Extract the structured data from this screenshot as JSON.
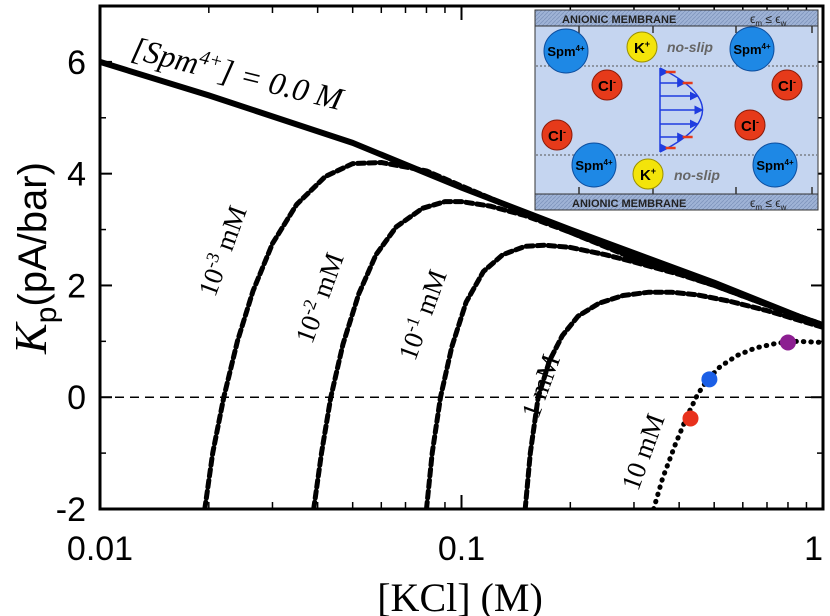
{
  "chart_data": {
    "type": "line",
    "xscale": "log",
    "xlim": [
      0.01,
      1
    ],
    "ylim": [
      -2,
      7
    ],
    "xlabel": "[KCl] (M)",
    "ylabel": {
      "main": "K",
      "sub": "p",
      "unit": "(pA/bar)"
    },
    "xticks": [
      {
        "value": 0.01,
        "label": "0.01"
      },
      {
        "value": 0.1,
        "label": "0.1"
      },
      {
        "value": 1,
        "label": "1"
      }
    ],
    "yticks": [
      {
        "value": 6,
        "label": "6"
      },
      {
        "value": 4,
        "label": "4"
      },
      {
        "value": 2,
        "label": "2"
      },
      {
        "value": 0,
        "label": "0"
      },
      {
        "value": -2,
        "label": "-2"
      }
    ],
    "zero_line": 0,
    "series": [
      {
        "name": "[Spm4+] = 0.0 M",
        "label": {
          "open": "[Spm",
          "sup": "4+",
          "close": "] = 0.0 M"
        },
        "style": "solid",
        "x": [
          0.01,
          0.02,
          0.05,
          0.1,
          0.2,
          0.5,
          1.0
        ],
        "y": [
          6.0,
          5.4,
          4.55,
          3.75,
          3.0,
          2.05,
          1.27
        ]
      },
      {
        "name": "10-3 mM",
        "label": {
          "base": "10",
          "sup": "-3",
          "unit": " mM"
        },
        "style": "dashed",
        "x": [
          0.0195,
          0.0205,
          0.022,
          0.024,
          0.0265,
          0.03,
          0.035,
          0.042,
          0.05,
          0.06,
          0.08,
          0.1,
          0.15,
          0.2,
          0.3,
          0.5,
          0.7,
          1.0
        ],
        "y": [
          -2.0,
          -1.0,
          0.0,
          1.0,
          1.9,
          2.75,
          3.45,
          3.95,
          4.18,
          4.2,
          4.05,
          3.78,
          3.3,
          2.95,
          2.5,
          2.02,
          1.65,
          1.3
        ]
      },
      {
        "name": "10-2 mM",
        "label": {
          "base": "10",
          "sup": "-2",
          "unit": " mM"
        },
        "style": "dashed",
        "x": [
          0.039,
          0.041,
          0.0435,
          0.047,
          0.052,
          0.058,
          0.066,
          0.078,
          0.09,
          0.1,
          0.12,
          0.15,
          0.2,
          0.3,
          0.5,
          0.7,
          1.0
        ],
        "y": [
          -2.0,
          -1.0,
          0.0,
          0.95,
          1.85,
          2.55,
          3.05,
          3.38,
          3.5,
          3.5,
          3.42,
          3.25,
          2.95,
          2.48,
          2.0,
          1.65,
          1.3
        ]
      },
      {
        "name": "10-1 mM",
        "label": {
          "base": "10",
          "sup": "-1",
          "unit": " mM"
        },
        "style": "dashed",
        "x": [
          0.08,
          0.083,
          0.0875,
          0.094,
          0.103,
          0.115,
          0.13,
          0.15,
          0.17,
          0.2,
          0.25,
          0.3,
          0.4,
          0.5,
          0.7,
          1.0
        ],
        "y": [
          -2.0,
          -1.0,
          0.0,
          0.9,
          1.7,
          2.25,
          2.55,
          2.7,
          2.72,
          2.68,
          2.55,
          2.42,
          2.2,
          2.0,
          1.65,
          1.3
        ]
      },
      {
        "name": "1 mM",
        "label": {
          "base": "1",
          "sup": "",
          "unit": " mM"
        },
        "style": "dashed",
        "x": [
          0.15,
          0.155,
          0.163,
          0.175,
          0.19,
          0.21,
          0.24,
          0.28,
          0.33,
          0.38,
          0.45,
          0.55,
          0.7,
          1.0
        ],
        "y": [
          -2.0,
          -1.0,
          0.0,
          0.65,
          1.1,
          1.45,
          1.68,
          1.82,
          1.88,
          1.88,
          1.83,
          1.72,
          1.55,
          1.25
        ]
      },
      {
        "name": "10 mM",
        "label": {
          "base": "10",
          "sup": "",
          "unit": " mM"
        },
        "style": "dotted",
        "x": [
          0.34,
          0.36,
          0.39,
          0.42,
          0.45,
          0.48,
          0.52,
          0.58,
          0.65,
          0.75,
          0.85,
          1.0
        ],
        "y": [
          -2.0,
          -1.45,
          -0.85,
          -0.35,
          0.05,
          0.32,
          0.55,
          0.75,
          0.88,
          0.97,
          1.0,
          0.98
        ]
      }
    ],
    "markers": [
      {
        "x": 0.43,
        "y": -0.38,
        "color": "#e8311c"
      },
      {
        "x": 0.485,
        "y": 0.32,
        "color": "#1b5fe6"
      },
      {
        "x": 0.8,
        "y": 0.98,
        "color": "#8c1f91"
      }
    ]
  },
  "inset": {
    "membrane_top": "ANIONIC MEMBRANE",
    "membrane_bottom": "ANIONIC MEMBRANE",
    "permittivity": {
      "eps": "ϵ",
      "sub_m": "m",
      "sub_w": "w",
      "rel": " ≤ "
    },
    "no_slip": "no-slip",
    "ions": {
      "spm": {
        "base": "Spm",
        "sup": "4+"
      },
      "k": {
        "base": "K",
        "sup": "+"
      },
      "cl": {
        "base": "Cl",
        "sup": "-"
      }
    },
    "colors": {
      "background": "#c5d5f0",
      "membrane": "#9fb3d6",
      "spm": "#1e88e5",
      "k": "#f3e40a",
      "cl": "#e63a1a",
      "flow": "#1f3ce0",
      "shear": "#e63a1a"
    }
  }
}
